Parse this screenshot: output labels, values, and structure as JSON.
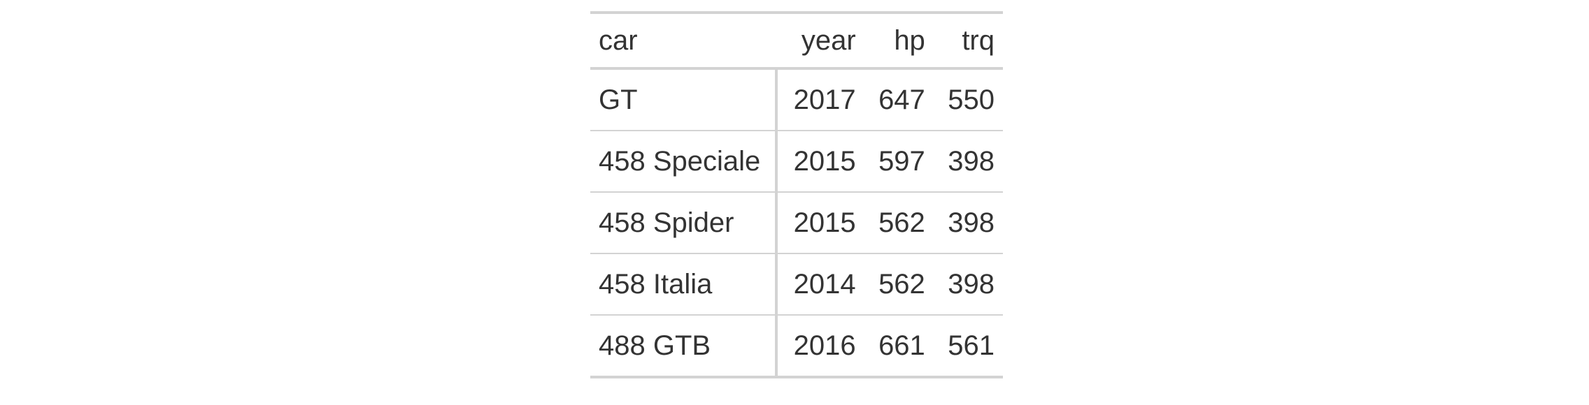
{
  "table": {
    "columns": [
      "car",
      "year",
      "hp",
      "trq"
    ],
    "rows": [
      [
        "GT",
        "2017",
        "647",
        "550"
      ],
      [
        "458 Speciale",
        "2015",
        "597",
        "398"
      ],
      [
        "458 Spider",
        "2015",
        "562",
        "398"
      ],
      [
        "458 Italia",
        "2014",
        "562",
        "398"
      ],
      [
        "488 GTB",
        "2016",
        "661",
        "561"
      ]
    ]
  }
}
